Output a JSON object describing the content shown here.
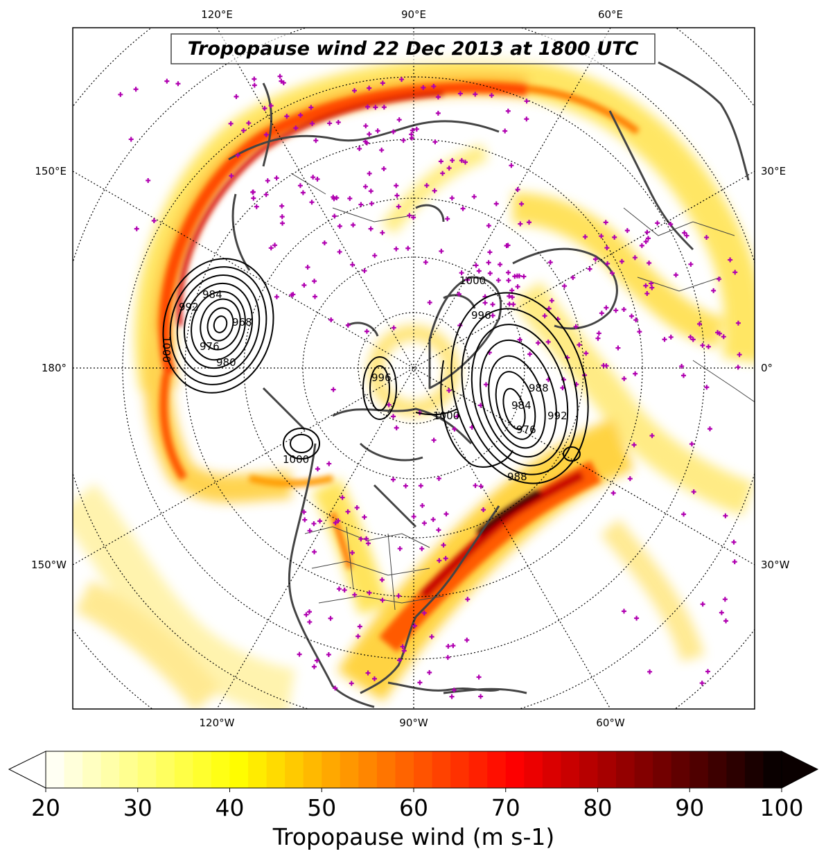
{
  "map": {
    "title": "Tropopause wind 22 Dec 2013 at 1800 UTC",
    "projection": "north-polar-stereographic",
    "lon_labels_top": [
      "120°E",
      "90°E",
      "60°E"
    ],
    "lon_labels_bottom": [
      "120°W",
      "90°W",
      "60°W"
    ],
    "lon_labels_left": [
      "150°E",
      "180°",
      "150°W"
    ],
    "lon_labels_right": [
      "30°E",
      "0°",
      "30°W"
    ],
    "contour_labels": [
      "992",
      "984",
      "976",
      "968",
      "1000",
      "980",
      "988",
      "996",
      "1000",
      "992",
      "988",
      "976",
      "984",
      "1000",
      "1000",
      "996"
    ]
  },
  "colorbar": {
    "label": "Tropopause wind (m s-1)",
    "ticks": [
      "20",
      "30",
      "40",
      "50",
      "60",
      "70",
      "80",
      "90",
      "100"
    ],
    "min": 20,
    "max": 100,
    "step": 2,
    "extend": "both",
    "colormap": "hot_r"
  },
  "colors": {
    "coast": "#444444",
    "stations": "#b000b0",
    "contours": "#000000"
  }
}
